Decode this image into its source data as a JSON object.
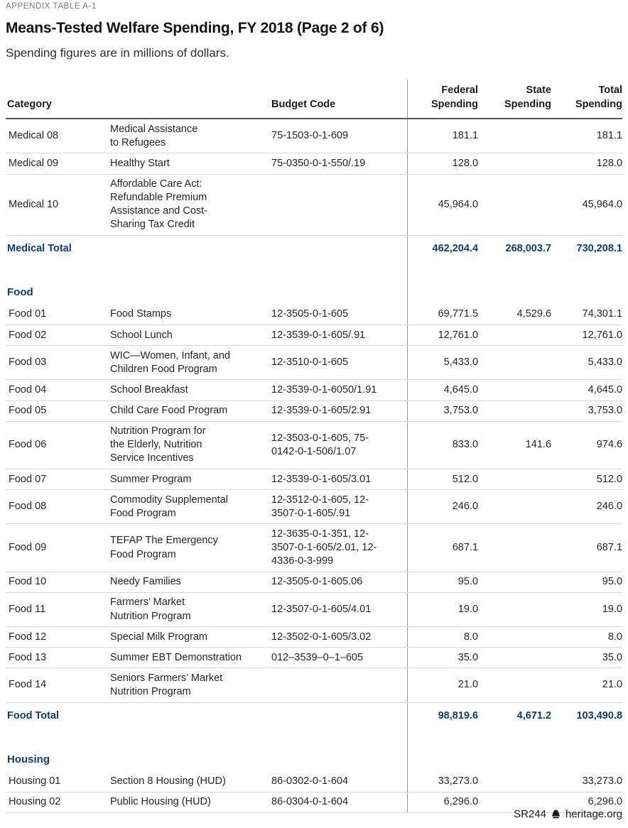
{
  "page": {
    "eyebrow": "APPENDIX TABLE A-1",
    "title": "Means-Tested Welfare Spending, FY 2018 (Page 2 of 6)",
    "subtitle": "Spending figures are in millions of dollars."
  },
  "colors": {
    "accent_navy": "#0b3d78",
    "rule_dark": "#55565a",
    "row_separator": "#d8d8d9",
    "column_divider": "#98989a",
    "eyebrow_gray": "#76777a"
  },
  "table": {
    "columns": {
      "category": "Category",
      "budget_code": "Budget Code",
      "federal": "Federal\nSpending",
      "state": "State\nSpending",
      "total": "Total\nSpending"
    },
    "sections": [
      {
        "name": null,
        "rows": [
          {
            "category": "Medical 08",
            "program": "Medical Assistance\nto Refugees",
            "budget_code": "75-1503-0-1-609",
            "federal": "181.1",
            "state": "",
            "total": "181.1"
          },
          {
            "category": "Medical 09",
            "program": "Healthy Start",
            "budget_code": "75-0350-0-1-550/.19",
            "federal": "128.0",
            "state": "",
            "total": "128.0"
          },
          {
            "category": "Medical 10",
            "program": "Affordable Care Act:\nRefundable Premium\nAssistance and Cost-\nSharing Tax Credit",
            "budget_code": "",
            "federal": "45,964.0",
            "state": "",
            "total": "45,964.0"
          }
        ],
        "total": {
          "label": "Medical Total",
          "federal": "462,204.4",
          "state": "268,003.7",
          "total": "730,208.1"
        }
      },
      {
        "name": "Food",
        "rows": [
          {
            "category": "Food 01",
            "program": "Food Stamps",
            "budget_code": "12-3505-0-1-605",
            "federal": "69,771.5",
            "state": "4,529.6",
            "total": "74,301.1"
          },
          {
            "category": "Food 02",
            "program": "School Lunch",
            "budget_code": "12-3539-0-1-605/.91",
            "federal": "12,761.0",
            "state": "",
            "total": "12,761.0"
          },
          {
            "category": "Food 03",
            "program": "WIC—Women, Infant, and\nChildren Food Program",
            "budget_code": "12-3510-0-1-605",
            "federal": "5,433.0",
            "state": "",
            "total": "5,433.0"
          },
          {
            "category": "Food 04",
            "program": "School Breakfast",
            "budget_code": "12-3539-0-1-6050/1.91",
            "federal": "4,645.0",
            "state": "",
            "total": "4,645.0"
          },
          {
            "category": "Food 05",
            "program": "Child Care Food Program",
            "budget_code": "12-3539-0-1-605/2.91",
            "federal": "3,753.0",
            "state": "",
            "total": "3,753.0"
          },
          {
            "category": "Food 06",
            "program": "Nutrition Program for\nthe Elderly, Nutrition\nService Incentives",
            "budget_code": "12-3503-0-1-605, 75-\n0142-0-1-506/1.07",
            "federal": "833.0",
            "state": "141.6",
            "total": "974.6"
          },
          {
            "category": "Food 07",
            "program": "Summer Program",
            "budget_code": "12-3539-0-1-605/3.01",
            "federal": "512.0",
            "state": "",
            "total": "512.0"
          },
          {
            "category": "Food 08",
            "program": "Commodity Supplemental\nFood Program",
            "budget_code": "12-3512-0-1-605, 12-\n3507-0-1-605/.91",
            "federal": "246.0",
            "state": "",
            "total": "246.0"
          },
          {
            "category": "Food 09",
            "program": "TEFAP The Emergency\nFood Program",
            "budget_code": "12-3635-0-1-351, 12-\n3507-0-1-605/2.01, 12-\n4336-0-3-999",
            "federal": "687.1",
            "state": "",
            "total": "687.1"
          },
          {
            "category": "Food 10",
            "program": "Needy Families",
            "budget_code": "12-3505-0-1-605.06",
            "federal": "95.0",
            "state": "",
            "total": "95.0"
          },
          {
            "category": "Food 11",
            "program": "Farmers’ Market\nNutrition Program",
            "budget_code": "12-3507-0-1-605/4.01",
            "federal": "19.0",
            "state": "",
            "total": "19.0"
          },
          {
            "category": "Food 12",
            "program": "Special Milk Program",
            "budget_code": "12-3502-0-1-605/3.02",
            "federal": "8.0",
            "state": "",
            "total": "8.0"
          },
          {
            "category": "Food 13",
            "program": "Summer EBT Demonstration",
            "budget_code": "012–3539–0–1–605",
            "federal": "35.0",
            "state": "",
            "total": "35.0"
          },
          {
            "category": "Food 14",
            "program": "Seniors Farmers’ Market\nNutrition Program",
            "budget_code": "",
            "federal": "21.0",
            "state": "",
            "total": "21.0"
          }
        ],
        "total": {
          "label": "Food Total",
          "federal": "98,819.6",
          "state": "4,671.2",
          "total": "103,490.8"
        }
      },
      {
        "name": "Housing",
        "rows": [
          {
            "category": "Housing 01",
            "program": "Section 8 Housing (HUD)",
            "budget_code": "86-0302-0-1-604",
            "federal": "33,273.0",
            "state": "",
            "total": "33,273.0"
          },
          {
            "category": "Housing 02",
            "program": "Public Housing (HUD)",
            "budget_code": "86-0304-0-1-604",
            "federal": "6,296.0",
            "state": "",
            "total": "6,296.0"
          }
        ],
        "total": null
      }
    ]
  },
  "footer": {
    "report_id": "SR244",
    "site": "heritage.org",
    "logo_icon": "liberty-bell-icon"
  }
}
